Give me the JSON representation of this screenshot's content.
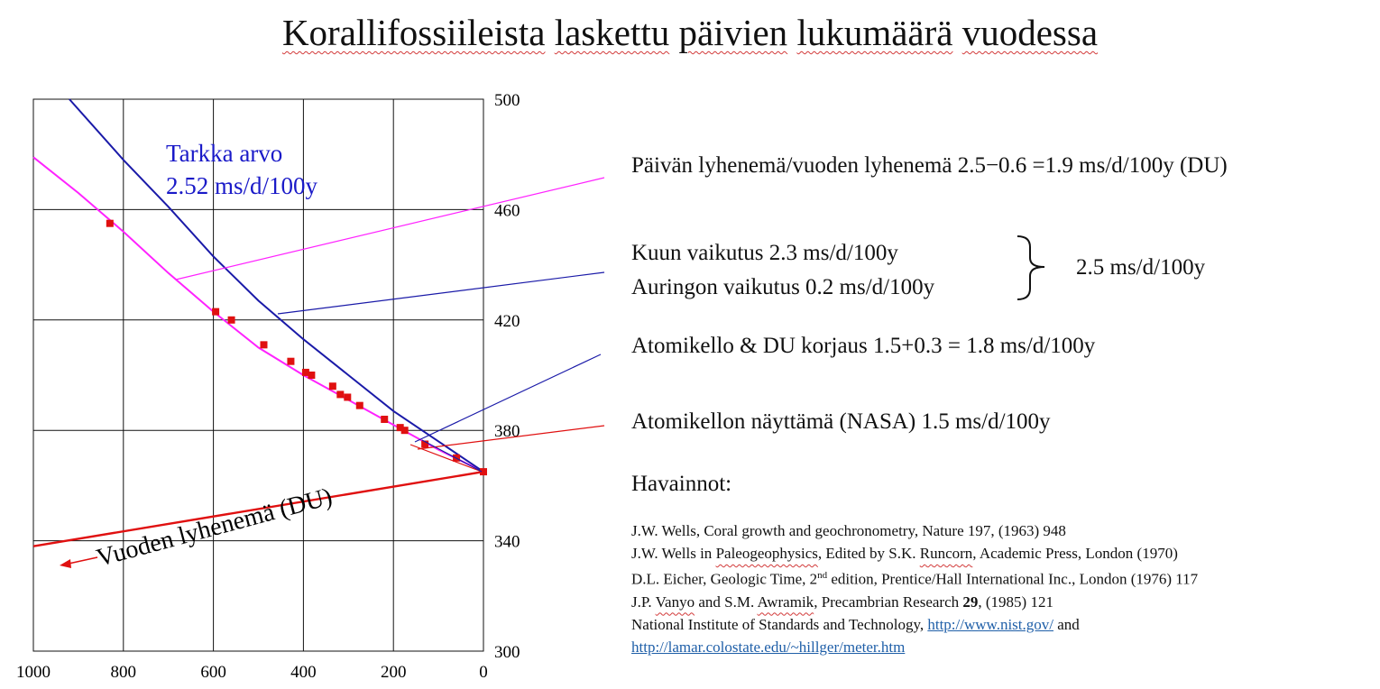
{
  "title": {
    "t1": "Korallifossiileista",
    "t2": "laskettu",
    "t3": "päivien",
    "t4": "lukumäärä",
    "t5": "vuodessa"
  },
  "annotations": {
    "tarkka_label": "Tarkka arvo",
    "tarkka_value": "2.52 ms/d/100y",
    "vuoden": "Vuoden lyhenemä (DU)",
    "paivan": "Päivän lyhenemä/vuoden lyhenemä 2.5−0.6 =1.9 ms/d/100y  (DU)",
    "kuun": "Kuun vaikutus 2.3 ms/d/100y",
    "auringon": "Auringon vaikutus 0.2 ms/d/100y",
    "total": "2.5 ms/d/100y",
    "atomikello_du": "Atomikello & DU korjaus 1.5+0.3 = 1.8 ms/d/100y",
    "nasa": "Atomikellon näyttämä (NASA)  1.5 ms/d/100y",
    "havainnot": "Havainnot:"
  },
  "references": {
    "r1": "J.W. Wells, Coral growth and geochronometry, Nature 197, (1963) 948",
    "r2a": "J.W. Wells in ",
    "r2b": "Paleogeophysics",
    "r2c": ", Edited by S.K. ",
    "r2d": "Runcorn",
    "r2e": ", Academic Press, London (1970)",
    "r3a": "D.L. Eicher, Geologic Time, 2",
    "r3sup": "nd",
    "r3b": " edition, Prentice/Hall International Inc., London (1976) 117",
    "r4a": "J.P. ",
    "r4b": "Vanyo",
    "r4c": " and S.M. ",
    "r4d": "Awramik",
    "r4e": ", Precambrian Research ",
    "r4f": "29",
    "r4g": ", (1985) 121",
    "r5a": "National Institute of Standards and Technology, ",
    "r5link": "http://www.nist.gov/",
    "r5b": "  and",
    "r6link": "http://lamar.colostate.edu/~hillger/meter.htm"
  },
  "colors": {
    "magenta": "#ff22ff",
    "blue": "#1a1aa8",
    "red": "#e01010",
    "link": "#1f5fa8"
  },
  "chart_data": {
    "type": "scatter",
    "xlim": [
      1000,
      0
    ],
    "ylim": [
      300,
      500
    ],
    "x_ticks": [
      1000,
      800,
      600,
      400,
      200,
      0
    ],
    "y_ticks": [
      300,
      340,
      380,
      420,
      460,
      500
    ],
    "y_axis_side": "right",
    "grid": true,
    "points": {
      "x": [
        830,
        595,
        560,
        488,
        428,
        395,
        382,
        335,
        318,
        302,
        275,
        220,
        185,
        175,
        130,
        60,
        0
      ],
      "y": [
        455,
        423,
        420,
        411,
        405,
        401,
        400,
        396,
        393,
        392,
        389,
        384,
        381,
        380,
        375,
        370,
        365
      ]
    },
    "series": [
      {
        "name": "",
        "type": "curve",
        "color": "magenta",
        "x": [
          1000,
          900,
          800,
          700,
          600,
          500,
          400,
          300,
          200,
          100,
          0
        ],
        "y": [
          479,
          466,
          452,
          437,
          423,
          410,
          400,
          391,
          382,
          373,
          365
        ]
      },
      {
        "name": "",
        "type": "curve",
        "color": "blue",
        "x": [
          920,
          800,
          700,
          600,
          500,
          400,
          300,
          200,
          100,
          0
        ],
        "y": [
          500,
          478,
          461,
          443,
          427,
          413,
          400,
          387,
          376,
          365
        ]
      },
      {
        "name": "Vuoden lyhenemä (DU)",
        "type": "line",
        "color": "red",
        "x": [
          1000,
          0
        ],
        "y": [
          338,
          365
        ]
      }
    ]
  }
}
